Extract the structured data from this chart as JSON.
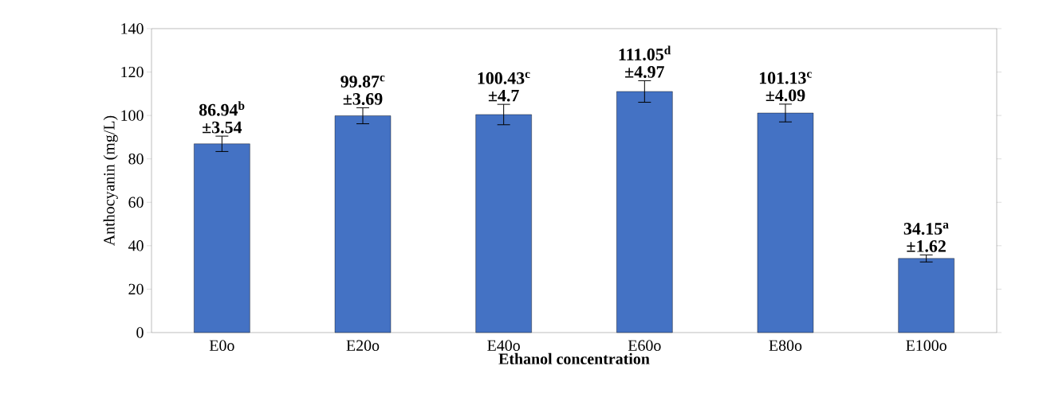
{
  "chart_data": {
    "type": "bar",
    "xlabel": "Ethanol concentration",
    "ylabel": "Anthocyanin (mg/L)",
    "categories": [
      "E0o",
      "E20o",
      "E40o",
      "E60o",
      "E80o",
      "E100o"
    ],
    "values": [
      86.94,
      99.87,
      100.43,
      111.05,
      101.13,
      34.15
    ],
    "errors": [
      3.54,
      3.69,
      4.7,
      4.97,
      4.09,
      1.62
    ],
    "value_labels": [
      "86.94$^{b}$ ±3.54",
      "99.87$^{c}$ ±3.69",
      "100.43$^{c}$ ±4.7",
      "111.05$^{d}$ ±4.97",
      "101.13$^{c}$ ±4.09",
      "34.15$^{a}$ ±1.62"
    ],
    "color": "#4472c4",
    "ylim": [
      0,
      140
    ],
    "yticks": [
      0,
      20,
      40,
      60,
      80,
      100,
      120,
      140
    ]
  }
}
